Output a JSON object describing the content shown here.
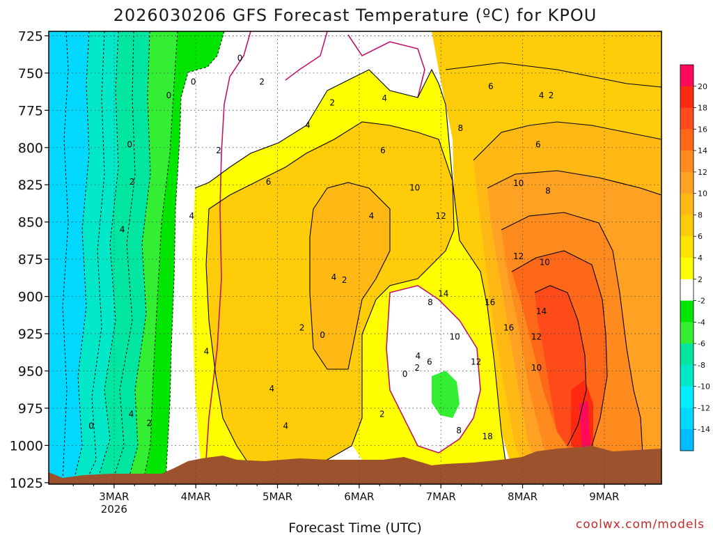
{
  "chart_data": {
    "type": "heatmap",
    "title": "2026030206 GFS Forecast Temperature (ºC) for KPOU",
    "xlabel": "Forecast Time (UTC)",
    "credit": "coolwx.com/models",
    "y_axis": {
      "labels": [
        "725",
        "750",
        "775",
        "800",
        "825",
        "850",
        "875",
        "900",
        "925",
        "950",
        "975",
        "1000",
        "1025"
      ],
      "values": [
        725,
        750,
        775,
        800,
        825,
        850,
        875,
        900,
        925,
        950,
        975,
        1000,
        1025
      ],
      "inverted": true
    },
    "x_axis": {
      "ticks": [
        {
          "label": "3MAR",
          "sublabel": "2026"
        },
        {
          "label": "4MAR",
          "sublabel": ""
        },
        {
          "label": "5MAR",
          "sublabel": ""
        },
        {
          "label": "6MAR",
          "sublabel": ""
        },
        {
          "label": "7MAR",
          "sublabel": ""
        },
        {
          "label": "8MAR",
          "sublabel": ""
        },
        {
          "label": "9MAR",
          "sublabel": ""
        }
      ]
    },
    "grid": true,
    "colorbar": {
      "labels": [
        "20",
        "18",
        "16",
        "14",
        "12",
        "10",
        "8",
        "6",
        "4",
        "2",
        "-2",
        "-4",
        "-6",
        "-8",
        "-10",
        "-12",
        "-14"
      ],
      "colors": [
        "#ff0a5a",
        "#ff2a10",
        "#ff4a1a",
        "#ff6818",
        "#ff8a1e",
        "#ffa224",
        "#ffb814",
        "#ffcc0a",
        "#ffe400",
        "#ffff00",
        "#ffffff",
        "#00e600",
        "#33ee33",
        "#00e6a0",
        "#00e8c8",
        "#00eeff",
        "#00d8ff",
        "#00bbff"
      ]
    },
    "contour_labels": [
      {
        "text": "0",
        "day": 2.72,
        "p": 987
      },
      {
        "text": "0",
        "day": 3.19,
        "p": 798
      },
      {
        "text": "0",
        "day": 3.67,
        "p": 765
      },
      {
        "text": "0",
        "day": 3.97,
        "p": 756
      },
      {
        "text": "0",
        "day": 4.54,
        "p": 740
      },
      {
        "text": "2",
        "day": 3.22,
        "p": 823
      },
      {
        "text": "2",
        "day": 3.43,
        "p": 985
      },
      {
        "text": "2",
        "day": 4.28,
        "p": 802
      },
      {
        "text": "2",
        "day": 4.81,
        "p": 756
      },
      {
        "text": "2",
        "day": 5.67,
        "p": 770
      },
      {
        "text": "2",
        "day": 5.82,
        "p": 889
      },
      {
        "text": "2",
        "day": 5.3,
        "p": 921
      },
      {
        "text": "0",
        "day": 5.55,
        "p": 926
      },
      {
        "text": "0",
        "day": 6.56,
        "p": 952
      },
      {
        "text": "2",
        "day": 6.28,
        "p": 979
      },
      {
        "text": "2",
        "day": 6.71,
        "p": 948
      },
      {
        "text": "4",
        "day": 3.1,
        "p": 855
      },
      {
        "text": "4",
        "day": 3.95,
        "p": 846
      },
      {
        "text": "4",
        "day": 3.21,
        "p": 979
      },
      {
        "text": "4",
        "day": 4.13,
        "p": 937
      },
      {
        "text": "4",
        "day": 4.93,
        "p": 962
      },
      {
        "text": "4",
        "day": 5.1,
        "p": 987
      },
      {
        "text": "4",
        "day": 5.37,
        "p": 785
      },
      {
        "text": "4",
        "day": 5.69,
        "p": 887
      },
      {
        "text": "4",
        "day": 6.31,
        "p": 767
      },
      {
        "text": "4",
        "day": 6.15,
        "p": 846
      },
      {
        "text": "4",
        "day": 6.72,
        "p": 940
      },
      {
        "text": "6",
        "day": 6.29,
        "p": 802
      },
      {
        "text": "6",
        "day": 4.89,
        "p": 823
      },
      {
        "text": "6",
        "day": 6.86,
        "p": 944
      },
      {
        "text": "6",
        "day": 7.61,
        "p": 759
      },
      {
        "text": "6",
        "day": 8.19,
        "p": 798
      },
      {
        "text": "8",
        "day": 6.87,
        "p": 904
      },
      {
        "text": "8",
        "day": 7.24,
        "p": 787
      },
      {
        "text": "8",
        "day": 8.31,
        "p": 829
      },
      {
        "text": "8",
        "day": 7.22,
        "p": 990
      },
      {
        "text": "10",
        "day": 6.68,
        "p": 827
      },
      {
        "text": "10",
        "day": 7.95,
        "p": 824
      },
      {
        "text": "10",
        "day": 7.17,
        "p": 927
      },
      {
        "text": "10",
        "day": 8.27,
        "p": 877
      },
      {
        "text": "10",
        "day": 8.17,
        "p": 948
      },
      {
        "text": "12",
        "day": 7.0,
        "p": 846
      },
      {
        "text": "12",
        "day": 7.95,
        "p": 873
      },
      {
        "text": "12",
        "day": 7.43,
        "p": 944
      },
      {
        "text": "12",
        "day": 8.17,
        "p": 927
      },
      {
        "text": "14",
        "day": 7.03,
        "p": 898
      },
      {
        "text": "14",
        "day": 8.23,
        "p": 910
      },
      {
        "text": "16",
        "day": 7.6,
        "p": 904
      },
      {
        "text": "16",
        "day": 7.83,
        "p": 921
      },
      {
        "text": "18",
        "day": 7.57,
        "p": 994
      },
      {
        "text": "2",
        "day": 8.35,
        "p": 765
      },
      {
        "text": "4",
        "day": 8.23,
        "p": 765
      }
    ],
    "colors": {
      "background": "#ffffff",
      "terrain": "#9c522d",
      "frame": "#000000",
      "grid": "#555555",
      "zero_isotherm": "#c0146a"
    }
  }
}
